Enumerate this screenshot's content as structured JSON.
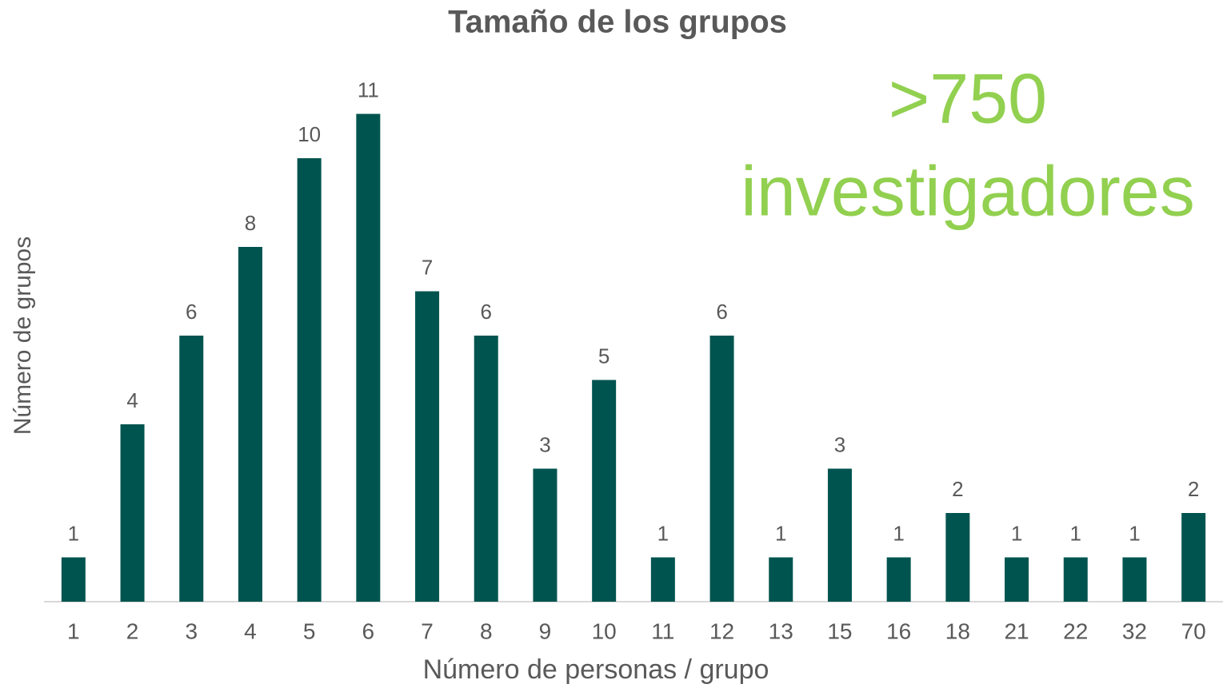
{
  "chart_data": {
    "type": "bar",
    "title": "Tamaño de los grupos",
    "x_label": "Número de personas / grupo",
    "y_label": "Número de grupos",
    "annotations": [
      ">750",
      "investigadores"
    ],
    "categories": [
      "1",
      "2",
      "3",
      "4",
      "5",
      "6",
      "7",
      "8",
      "9",
      "10",
      "11",
      "12",
      "13",
      "15",
      "16",
      "18",
      "21",
      "22",
      "32",
      "70"
    ],
    "values": [
      1,
      4,
      6,
      8,
      10,
      11,
      7,
      6,
      3,
      5,
      1,
      6,
      1,
      3,
      1,
      2,
      1,
      1,
      1,
      2
    ],
    "color": "#00544f",
    "annotation_color": "#92d050",
    "ylim": [
      0,
      12
    ]
  }
}
